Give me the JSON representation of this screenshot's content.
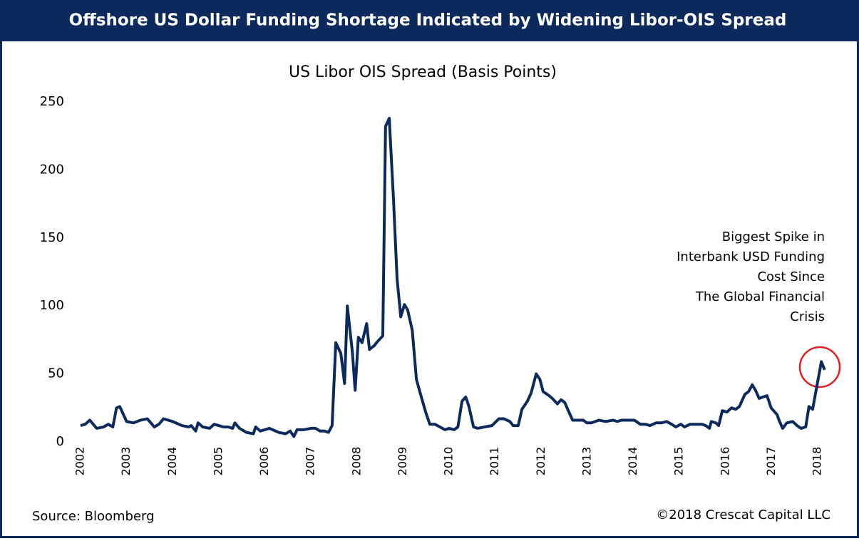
{
  "chart_data": {
    "type": "line",
    "header": "Offshore US Dollar Funding Shortage Indicated by Widening Libor-OIS Spread",
    "title": "US Libor OIS Spread (Basis Points)",
    "annotation": [
      "Biggest Spike in",
      "Interbank USD Funding",
      "Cost Since",
      "The Global Financial",
      "Crisis"
    ],
    "source": "Source: Bloomberg",
    "copyright": "©2018 Crescat Capital LLC",
    "xlim": [
      2001.8,
      2018.4
    ],
    "xticks": [
      2002,
      2003,
      2004,
      2005,
      2006,
      2007,
      2008,
      2009,
      2010,
      2011,
      2012,
      2013,
      2014,
      2015,
      2016,
      2017,
      2018
    ],
    "ylim": [
      0,
      250
    ],
    "yticks": [
      0,
      50,
      100,
      150,
      200,
      250
    ],
    "grid": false,
    "series": [
      {
        "name": "US Libor OIS Spread",
        "color": "#0d2a5c",
        "x": [
          2002.0,
          2002.1,
          2002.2,
          2002.35,
          2002.5,
          2002.6,
          2002.7,
          2002.78,
          2002.85,
          2003.0,
          2003.15,
          2003.3,
          2003.45,
          2003.6,
          2003.7,
          2003.8,
          2004.0,
          2004.2,
          2004.35,
          2004.4,
          2004.5,
          2004.55,
          2004.65,
          2004.8,
          2004.9,
          2005.1,
          2005.2,
          2005.3,
          2005.35,
          2005.45,
          2005.6,
          2005.75,
          2005.8,
          2005.9,
          2006.1,
          2006.3,
          2006.45,
          2006.55,
          2006.63,
          2006.7,
          2006.85,
          2007.0,
          2007.1,
          2007.2,
          2007.3,
          2007.38,
          2007.46,
          2007.54,
          2007.65,
          2007.73,
          2007.79,
          2007.9,
          2007.96,
          2008.03,
          2008.11,
          2008.21,
          2008.27,
          2008.38,
          2008.45,
          2008.56,
          2008.62,
          2008.7,
          2008.79,
          2008.87,
          2008.95,
          2009.03,
          2009.1,
          2009.2,
          2009.29,
          2009.38,
          2009.49,
          2009.58,
          2009.69,
          2009.8,
          2009.91,
          2010.0,
          2010.11,
          2010.19,
          2010.28,
          2010.36,
          2010.43,
          2010.53,
          2010.62,
          2010.77,
          2010.93,
          2011.08,
          2011.19,
          2011.32,
          2011.39,
          2011.5,
          2011.58,
          2011.7,
          2011.78,
          2011.89,
          2011.97,
          2012.04,
          2012.17,
          2012.24,
          2012.35,
          2012.43,
          2012.51,
          2012.6,
          2012.68,
          2012.79,
          2012.91,
          2012.99,
          2013.09,
          2013.25,
          2013.4,
          2013.56,
          2013.65,
          2013.74,
          2013.87,
          2014.02,
          2014.15,
          2014.26,
          2014.36,
          2014.49,
          2014.61,
          2014.72,
          2014.83,
          2014.92,
          2015.03,
          2015.11,
          2015.23,
          2015.34,
          2015.49,
          2015.57,
          2015.65,
          2015.69,
          2015.79,
          2015.85,
          2015.93,
          2016.03,
          2016.13,
          2016.22,
          2016.3,
          2016.42,
          2016.5,
          2016.58,
          2016.65,
          2016.73,
          2016.81,
          2016.9,
          2016.99,
          2017.12,
          2017.16,
          2017.24,
          2017.33,
          2017.46,
          2017.55,
          2017.64,
          2017.74,
          2017.81,
          2017.89,
          2018.02,
          2018.08,
          2018.15
        ],
        "values": [
          12,
          13,
          16,
          10,
          11,
          13,
          11,
          25,
          26,
          15,
          14,
          16,
          17,
          11,
          13,
          17,
          15,
          12,
          11,
          12,
          8,
          14,
          11,
          10,
          13,
          11,
          11,
          10,
          14,
          10,
          7,
          6,
          11,
          8,
          10,
          7,
          6,
          8,
          4,
          9,
          9,
          10,
          10,
          8,
          8,
          7,
          12,
          73,
          65,
          43,
          100,
          66,
          38,
          77,
          73,
          87,
          68,
          71,
          74,
          78,
          232,
          238,
          180,
          120,
          92,
          101,
          97,
          82,
          46,
          35,
          22,
          13,
          13,
          11,
          9,
          10,
          9,
          11,
          30,
          33,
          26,
          11,
          10,
          11,
          12,
          17,
          17,
          15,
          12,
          12,
          24,
          30,
          36,
          50,
          46,
          37,
          34,
          32,
          28,
          31,
          29,
          22,
          16,
          16,
          16,
          14,
          14,
          16,
          15,
          16,
          15,
          16,
          16,
          16,
          13,
          13,
          12,
          14,
          14,
          15,
          13,
          11,
          13,
          11,
          13,
          13,
          13,
          12,
          10,
          15,
          14,
          12,
          23,
          22,
          25,
          24,
          26,
          35,
          37,
          42,
          38,
          32,
          33,
          34,
          25,
          20,
          16,
          10,
          14,
          15,
          12,
          10,
          11,
          26,
          24,
          48,
          59,
          53
        ]
      }
    ]
  }
}
